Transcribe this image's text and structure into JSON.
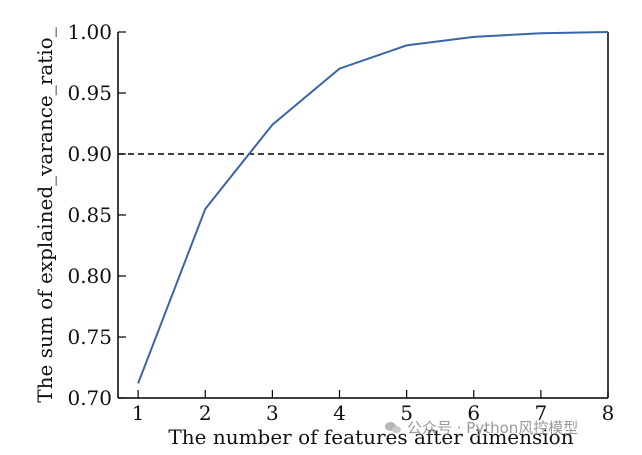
{
  "chart_data": {
    "type": "line",
    "title": "",
    "xlabel": "The number of features after dimension",
    "ylabel": "The sum of explained_varance_ratio_",
    "x": [
      1,
      2,
      3,
      4,
      5,
      6,
      7,
      8
    ],
    "series": [
      {
        "values": [
          0.712,
          0.855,
          0.924,
          0.97,
          0.989,
          0.996,
          0.999,
          1.0
        ],
        "color": "#3a66a8"
      }
    ],
    "reference_line": {
      "y": 0.9,
      "style": "dashed",
      "color": "#000000"
    },
    "xlim": [
      0.7,
      8
    ],
    "ylim": [
      0.7,
      1.0
    ],
    "xticks": [
      "1",
      "2",
      "3",
      "4",
      "5",
      "6",
      "7",
      "8"
    ],
    "yticks": [
      "0.70",
      "0.75",
      "0.80",
      "0.85",
      "0.90",
      "0.95",
      "1.00"
    ],
    "grid": false,
    "legend": "none"
  },
  "watermark": {
    "text": "公众号 · Python风控模型",
    "icon": "wechat-icon"
  }
}
